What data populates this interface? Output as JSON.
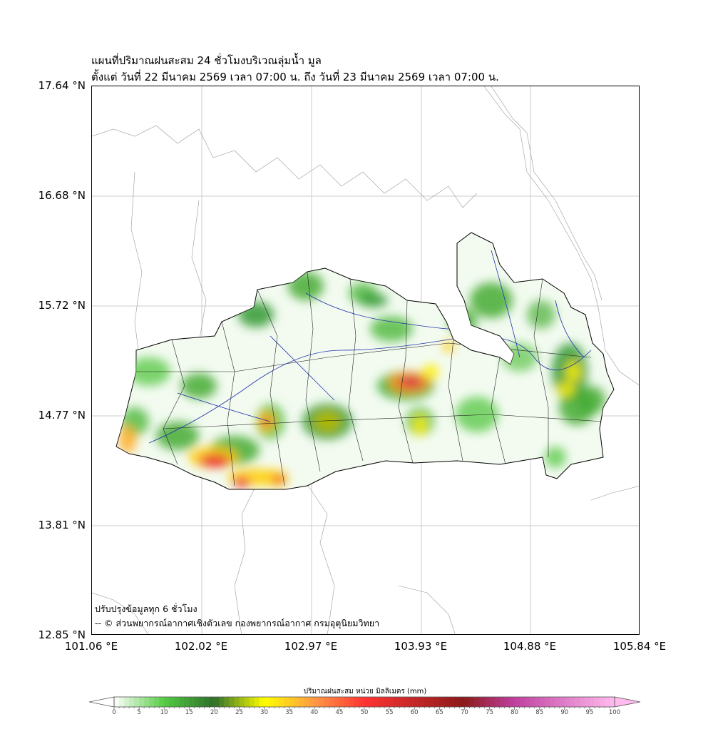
{
  "title": {
    "line1": "แผนที่ปริมาณฝนสะสม 24 ชั่วโมงบริเวณลุ่มน้ำ มูล",
    "line2": "ตั้งแต่ วันที่ 22 มีนาคม 2569 เวลา 07:00 น. ถึง วันที่ 23 มีนาคม 2569 เวลา 07:00 น."
  },
  "axes": {
    "lat_labels": [
      "17.64 °N",
      "16.68 °N",
      "15.72 °N",
      "14.77 °N",
      "13.81 °N",
      "12.85 °N"
    ],
    "lon_labels": [
      "101.06 °E",
      "102.02 °E",
      "102.97 °E",
      "103.93 °E",
      "104.88 °E",
      "105.84 °E"
    ],
    "lat_range": [
      12.85,
      17.64
    ],
    "lon_range": [
      101.06,
      105.84
    ]
  },
  "notes": {
    "update": "ปรับปรุงข้อมูลทุก 6 ชั่วโมง",
    "credit": "-- © ส่วนพยากรณ์อากาศเชิงตัวเลข กองพยากรณ์อากาศ กรมอุตุนิยมวิทยา"
  },
  "colorbar": {
    "title": "ปริมาณฝนสะสม หน่วย มิลลิเมตร (mm)",
    "ticks": [
      "0",
      "5",
      "10",
      "15",
      "20",
      "25",
      "30",
      "35",
      "40",
      "45",
      "50",
      "55",
      "60",
      "65",
      "70",
      "75",
      "80",
      "85",
      "90",
      "95",
      "100"
    ],
    "range": [
      0,
      100
    ],
    "stops": [
      {
        "v": 0,
        "c": "#ffffff"
      },
      {
        "v": 10,
        "c": "#55cc44"
      },
      {
        "v": 20,
        "c": "#2e6e2a"
      },
      {
        "v": 30,
        "c": "#ffff00"
      },
      {
        "v": 40,
        "c": "#ff9944"
      },
      {
        "v": 50,
        "c": "#ff3333"
      },
      {
        "v": 70,
        "c": "#8b1a1a"
      },
      {
        "v": 80,
        "c": "#c040a0"
      },
      {
        "v": 100,
        "c": "#ffbbee"
      }
    ]
  }
}
